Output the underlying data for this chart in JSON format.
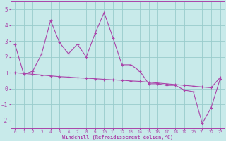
{
  "xlabel": "Windchill (Refroidissement éolien,°C)",
  "x_hours": [
    0,
    1,
    2,
    3,
    4,
    5,
    6,
    7,
    8,
    9,
    10,
    11,
    12,
    13,
    14,
    15,
    16,
    17,
    18,
    19,
    20,
    21,
    22,
    23
  ],
  "line1_y": [
    2.8,
    0.9,
    1.1,
    2.2,
    4.3,
    2.9,
    2.2,
    2.8,
    2.0,
    3.5,
    4.8,
    3.2,
    1.5,
    1.5,
    1.1,
    0.3,
    0.3,
    0.2,
    0.2,
    -0.1,
    -0.2,
    -2.2,
    -1.2,
    0.6
  ],
  "line2_y": [
    1.0,
    0.95,
    0.9,
    0.85,
    0.8,
    0.75,
    0.72,
    0.68,
    0.65,
    0.62,
    0.58,
    0.55,
    0.52,
    0.48,
    0.45,
    0.4,
    0.35,
    0.3,
    0.25,
    0.2,
    0.15,
    0.1,
    0.05,
    0.7
  ],
  "line_color": "#aa44aa",
  "bg_color": "#c8eaea",
  "grid_color": "#99cccc",
  "ylim": [
    -2.5,
    5.5
  ],
  "yticks": [
    -2,
    -1,
    0,
    1,
    2,
    3,
    4,
    5
  ]
}
